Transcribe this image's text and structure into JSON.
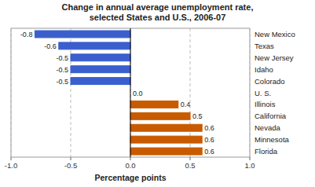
{
  "chart_data": {
    "type": "bar",
    "orientation": "horizontal",
    "title": "Change in annual average unemployment rate,\nselected States and U.S., 2006-07",
    "xlabel": "Percentage points",
    "categories": [
      "New Mexico",
      "Texas",
      "New Jersey",
      "Idaho",
      "Colorado",
      "U. S.",
      "Illinois",
      "California",
      "Nevada",
      "Minnesota",
      "Florida"
    ],
    "values": [
      -0.8,
      -0.6,
      -0.5,
      -0.5,
      -0.5,
      0.0,
      0.4,
      0.5,
      0.6,
      0.6,
      0.6
    ],
    "value_labels": [
      "-0.8",
      "-0.6",
      "-0.5",
      "-0.5",
      "-0.5",
      "0.0",
      "0.4",
      "0.5",
      "0.6",
      "0.6",
      "0.6"
    ],
    "colors": [
      "#3a5fcd",
      "#3a5fcd",
      "#3a5fcd",
      "#3a5fcd",
      "#3a5fcd",
      "#ffffff",
      "#c85a00",
      "#c85a00",
      "#c85a00",
      "#c85a00",
      "#c85a00"
    ],
    "xlim": [
      -1.0,
      1.0
    ],
    "xticks": [
      {
        "value": -1.0,
        "label": "-1.0"
      },
      -0.5,
      {
        "value": 0.0,
        "label": "0.0"
      },
      0.5,
      {
        "value": 1.0,
        "label": "1.0"
      }
    ],
    "grid": true,
    "data_labels": true
  }
}
